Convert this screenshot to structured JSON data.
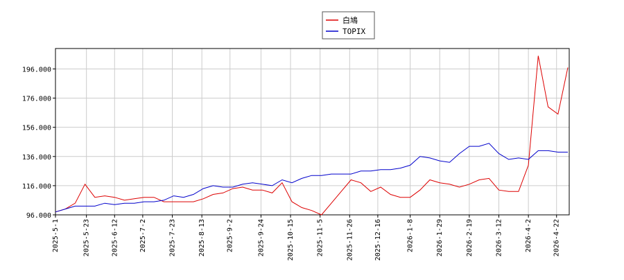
{
  "chart_data": {
    "type": "line",
    "x": [
      "2025-5-1",
      "2025-5-8",
      "2025-5-15",
      "2025-5-22",
      "2025-5-29",
      "2025-6-5",
      "2025-6-12",
      "2025-6-19",
      "2025-6-26",
      "2025-7-3",
      "2025-7-10",
      "2025-7-17",
      "2025-7-24",
      "2025-7-31",
      "2025-8-7",
      "2025-8-14",
      "2025-8-21",
      "2025-8-28",
      "2025-9-4",
      "2025-9-11",
      "2025-9-18",
      "2025-9-25",
      "2025-10-2",
      "2025-10-9",
      "2025-10-16",
      "2025-10-23",
      "2025-10-30",
      "2025-11-6",
      "2025-11-13",
      "2025-11-20",
      "2025-11-27",
      "2025-12-4",
      "2025-12-11",
      "2025-12-18",
      "2025-12-25",
      "2026-1-1",
      "2026-1-8",
      "2026-1-15",
      "2026-1-22",
      "2026-1-29",
      "2026-2-5",
      "2026-2-12",
      "2026-2-19",
      "2026-2-26",
      "2026-3-5",
      "2026-3-12",
      "2026-3-19",
      "2026-3-26",
      "2026-4-2",
      "2026-4-9",
      "2026-4-16",
      "2026-4-23",
      "2026-4-30"
    ],
    "series": [
      {
        "name": "白鳩",
        "color": "#dd0000",
        "values": [
          98,
          100,
          104,
          117,
          108,
          109,
          108,
          106,
          107,
          108,
          108,
          105,
          105,
          105,
          105,
          107,
          110,
          111,
          114,
          115,
          113,
          113,
          111,
          118,
          105,
          101,
          99,
          96,
          104,
          112,
          120,
          118,
          112,
          115,
          110,
          108,
          108,
          113,
          120,
          118,
          117,
          115,
          117,
          120,
          121,
          113,
          112,
          112,
          130,
          205,
          170,
          165,
          197
        ]
      },
      {
        "name": "TOPIX",
        "color": "#0000cc",
        "values": [
          98,
          100,
          102,
          102,
          102,
          104,
          103,
          104,
          104,
          105,
          105,
          106,
          109,
          108,
          110,
          114,
          116,
          115,
          115,
          117,
          118,
          117,
          116,
          120,
          118,
          121,
          123,
          123,
          124,
          124,
          124,
          126,
          126,
          127,
          127,
          128,
          130,
          136,
          135,
          133,
          132,
          138,
          143,
          143,
          145,
          138,
          134,
          135,
          134,
          140,
          140,
          139,
          139
        ]
      }
    ],
    "xlim": [
      "2025-5-1",
      "2026-5-1"
    ],
    "xticks": [
      "2025-5-1",
      "2025-5-23",
      "2025-6-12",
      "2025-7-2",
      "2025-7-23",
      "2025-8-13",
      "2025-9-2",
      "2025-9-24",
      "2025-10-15",
      "2025-11-5",
      "2025-11-26",
      "2025-12-16",
      "2026-1-8",
      "2026-1-29",
      "2026-2-19",
      "2026-3-12",
      "2026-4-2",
      "2026-4-22"
    ],
    "ylim": [
      96,
      210
    ],
    "yticks": [
      {
        "value": 96,
        "label": "96.000"
      },
      {
        "value": 116,
        "label": "116.000"
      },
      {
        "value": 136,
        "label": "136.000"
      },
      {
        "value": 156,
        "label": "156.000"
      },
      {
        "value": 176,
        "label": "176.000"
      },
      {
        "value": 196,
        "label": "196.000"
      }
    ],
    "grid": true,
    "legend": "top"
  }
}
